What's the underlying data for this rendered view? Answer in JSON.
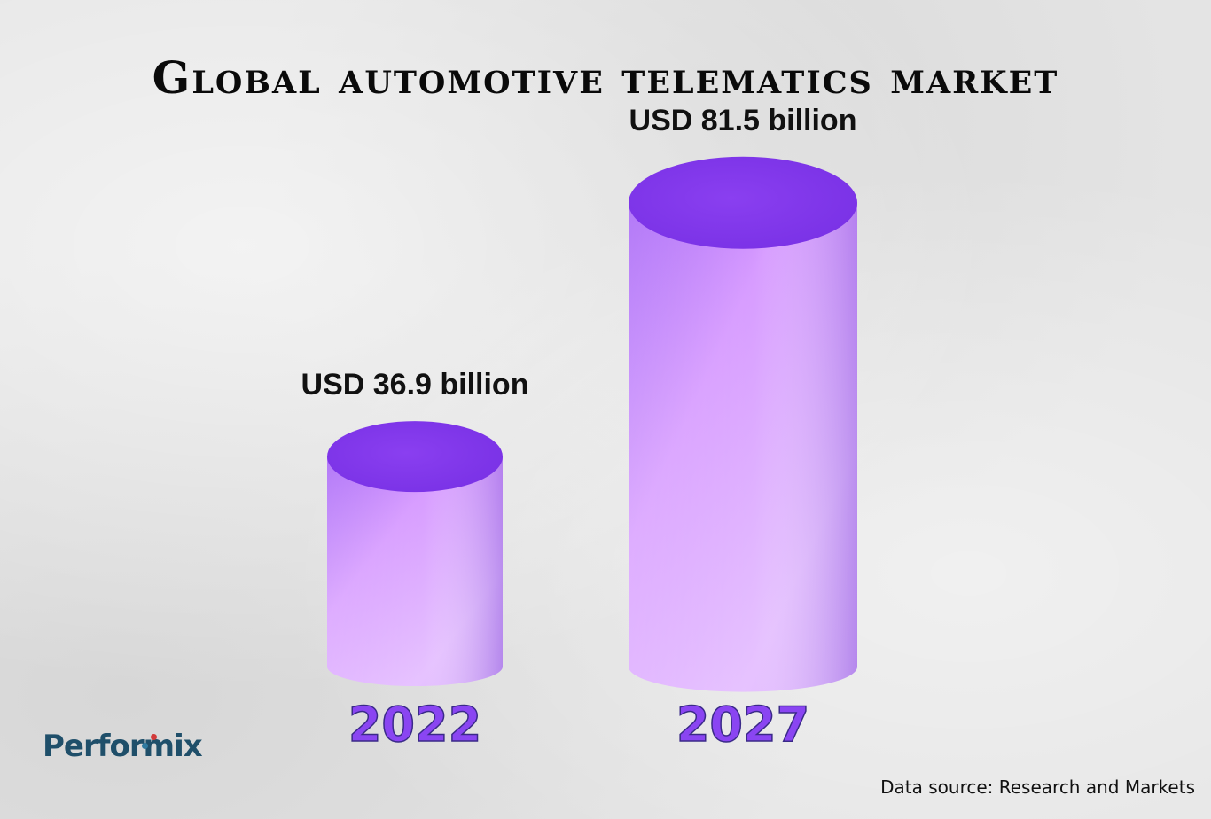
{
  "title": "Global automotive telematics market",
  "chart_data": {
    "type": "bar",
    "categories": [
      "2022",
      "2027"
    ],
    "values": [
      36.9,
      81.5
    ],
    "value_labels": [
      "USD 36.9 billion",
      "USD 81.5 billion"
    ],
    "unit": "USD billion",
    "grid": false,
    "legend": "none"
  },
  "colors": {
    "bar_top": "#8a3ff0",
    "bar_light": "#e6c2ff",
    "year_text": "#8a45f2",
    "logo": "#1f4f6a"
  },
  "logo": {
    "text": "Performix"
  },
  "source": "Data source: Research and Markets"
}
